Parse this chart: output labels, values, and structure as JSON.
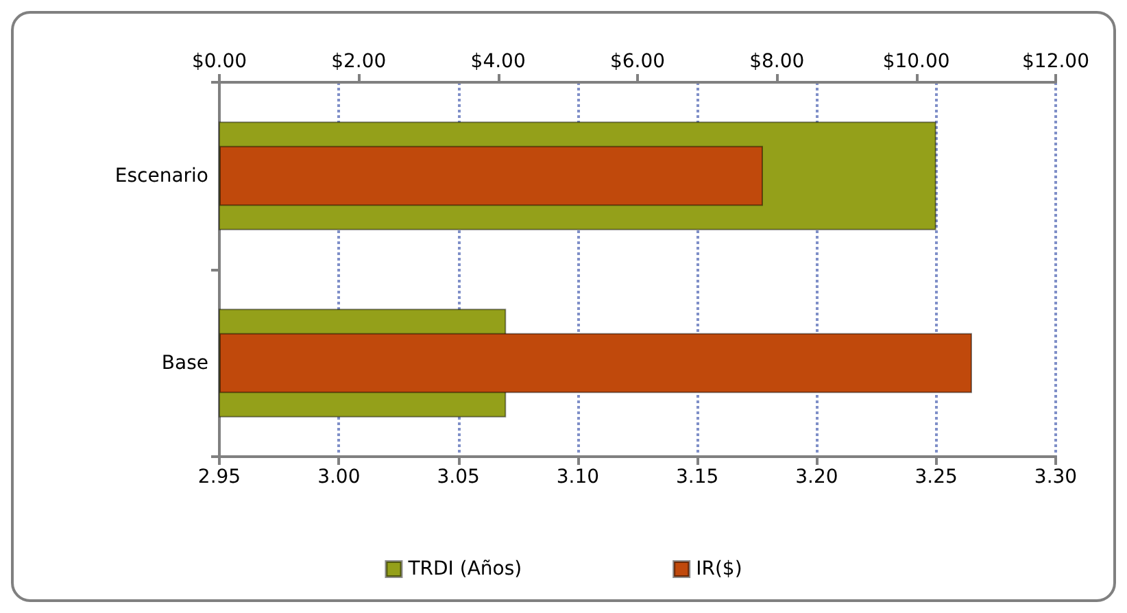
{
  "chart_data": {
    "type": "bar",
    "orientation": "horizontal",
    "categories": [
      "Escenario",
      "Base"
    ],
    "series": [
      {
        "name": "TRDI (Años)",
        "color": "#94a01a",
        "values": [
          3.25,
          3.07
        ]
      },
      {
        "name": "IR($)",
        "color": "#c0490c",
        "values": [
          7.8,
          10.8
        ],
        "axis": "x2"
      }
    ],
    "xlim": [
      2.95,
      3.3
    ],
    "xticks": [
      {
        "value": 2.95,
        "label": "2.95"
      },
      {
        "value": 3.0,
        "label": "3.00"
      },
      {
        "value": 3.05,
        "label": "3.05"
      },
      {
        "value": 3.1,
        "label": "3.10"
      },
      {
        "value": 3.15,
        "label": "3.15"
      },
      {
        "value": 3.2,
        "label": "3.20"
      },
      {
        "value": 3.25,
        "label": "3.25"
      },
      {
        "value": 3.3,
        "label": "3.30"
      }
    ],
    "x2lim": [
      0,
      12
    ],
    "x2ticks": [
      {
        "value": 0,
        "label": "$0.00"
      },
      {
        "value": 2,
        "label": "$2.00"
      },
      {
        "value": 4,
        "label": "$4.00"
      },
      {
        "value": 6,
        "label": "$6.00"
      },
      {
        "value": 8,
        "label": "$8.00"
      },
      {
        "value": 10,
        "label": "$10.00"
      },
      {
        "value": 12,
        "label": "$12.00"
      }
    ],
    "grid": "x",
    "legend": "bottom"
  }
}
